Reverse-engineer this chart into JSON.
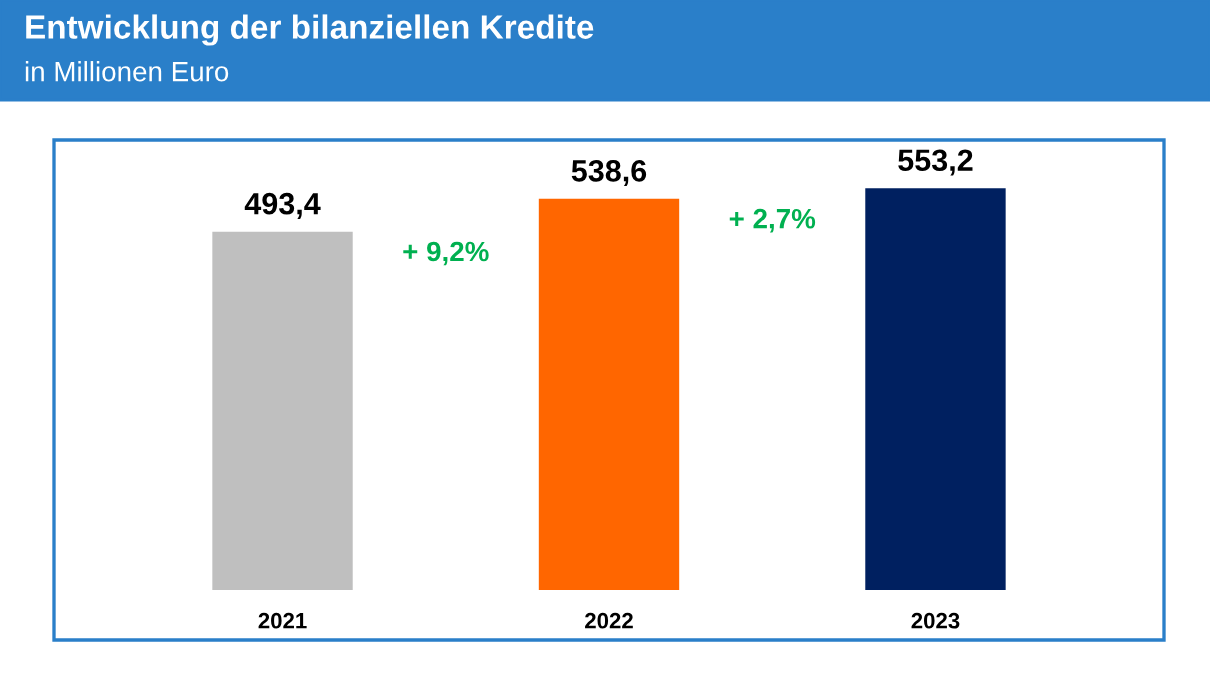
{
  "chart_data": {
    "type": "bar",
    "title": "Entwicklung der bilanziellen Kredite",
    "subtitle": "in Millionen Euro",
    "categories": [
      "2021",
      "2022",
      "2023"
    ],
    "values": [
      493.4,
      538.6,
      553.2
    ],
    "colors": [
      "#bfbfbf",
      "#ff6600",
      "#002060"
    ],
    "tick_labels": "x",
    "value_labels": [
      "493,4",
      "538,6",
      "553,2"
    ],
    "annotations": [
      "+ 9,2%",
      "+ 2,7%"
    ],
    "grid": false,
    "legend": false
  }
}
